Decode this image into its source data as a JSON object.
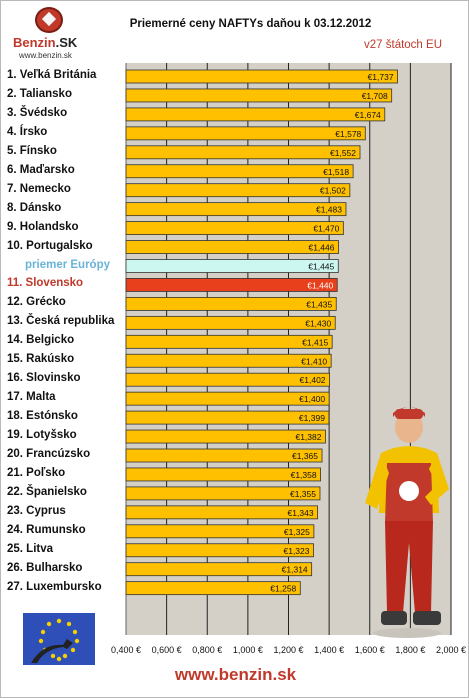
{
  "header": {
    "title": "Priemerné ceny NAFTYs daňou k 03.12.2012",
    "subtitle": "v27 štátoch EU"
  },
  "logo": {
    "brand_main": "Benzin",
    "brand_suffix": ".SK",
    "url": "www.benzin.sk"
  },
  "footer": {
    "url": "www.benzin.sk"
  },
  "colors": {
    "bar": "#ffc000",
    "bar_highlight": "#e8401c",
    "bar_average": "#ccf6f0",
    "plot_background": "#d4d0c8",
    "highlight_text": "#c0392b",
    "average_text": "#69b3d8"
  },
  "chart_data": {
    "type": "bar",
    "orientation": "horizontal",
    "categories": [
      "1. Veľká Británia",
      "2. Taliansko",
      "3. Švédsko",
      "4. Írsko",
      "5. Fínsko",
      "6. Maďarsko",
      "7. Nemecko",
      "8. Dánsko",
      "9. Holandsko",
      "10. Portugalsko",
      "priemer Európy",
      "11. Slovensko",
      "12. Grécko",
      "13. Česká republika",
      "14. Belgicko",
      "15. Rakúsko",
      "16. Slovinsko",
      "17. Malta",
      "18. Estónsko",
      "19. Lotyšsko",
      "20. Francúzsko",
      "21. Poľsko",
      "22. Španielsko",
      "23. Cyprus",
      "24. Rumunsko",
      "25. Litva",
      "26. Bulharsko",
      "27. Luxembursko"
    ],
    "values": [
      1.737,
      1.708,
      1.674,
      1.578,
      1.552,
      1.518,
      1.502,
      1.483,
      1.47,
      1.446,
      1.445,
      1.44,
      1.435,
      1.43,
      1.415,
      1.41,
      1.402,
      1.4,
      1.399,
      1.382,
      1.365,
      1.358,
      1.355,
      1.343,
      1.325,
      1.323,
      1.314,
      1.258
    ],
    "value_labels": [
      "€1,737",
      "€1,708",
      "€1,674",
      "€1,578",
      "€1,552",
      "€1,518",
      "€1,502",
      "€1,483",
      "€1,470",
      "€1,446",
      "€1,445",
      "€1,440",
      "€1,435",
      "€1,430",
      "€1,415",
      "€1,410",
      "€1,402",
      "€1,400",
      "€1,399",
      "€1,382",
      "€1,365",
      "€1,358",
      "€1,355",
      "€1,343",
      "€1,325",
      "€1,323",
      "€1,314",
      "€1,258"
    ],
    "highlight_index": 11,
    "average_index": 10,
    "xlim": [
      0.4,
      2.0
    ],
    "xticks": [
      0.4,
      0.6,
      0.8,
      1.0,
      1.2,
      1.4,
      1.6,
      1.8,
      2.0
    ],
    "xtick_labels": [
      "0,400 €",
      "0,600 €",
      "0,800 €",
      "1,000 €",
      "1,200 €",
      "1,400 €",
      "1,600 €",
      "1,800 €",
      "2,000 €"
    ],
    "title": "Priemerné ceny NAFTYs daňou k 03.12.2012",
    "xlabel": "",
    "ylabel": "",
    "grid": true
  }
}
